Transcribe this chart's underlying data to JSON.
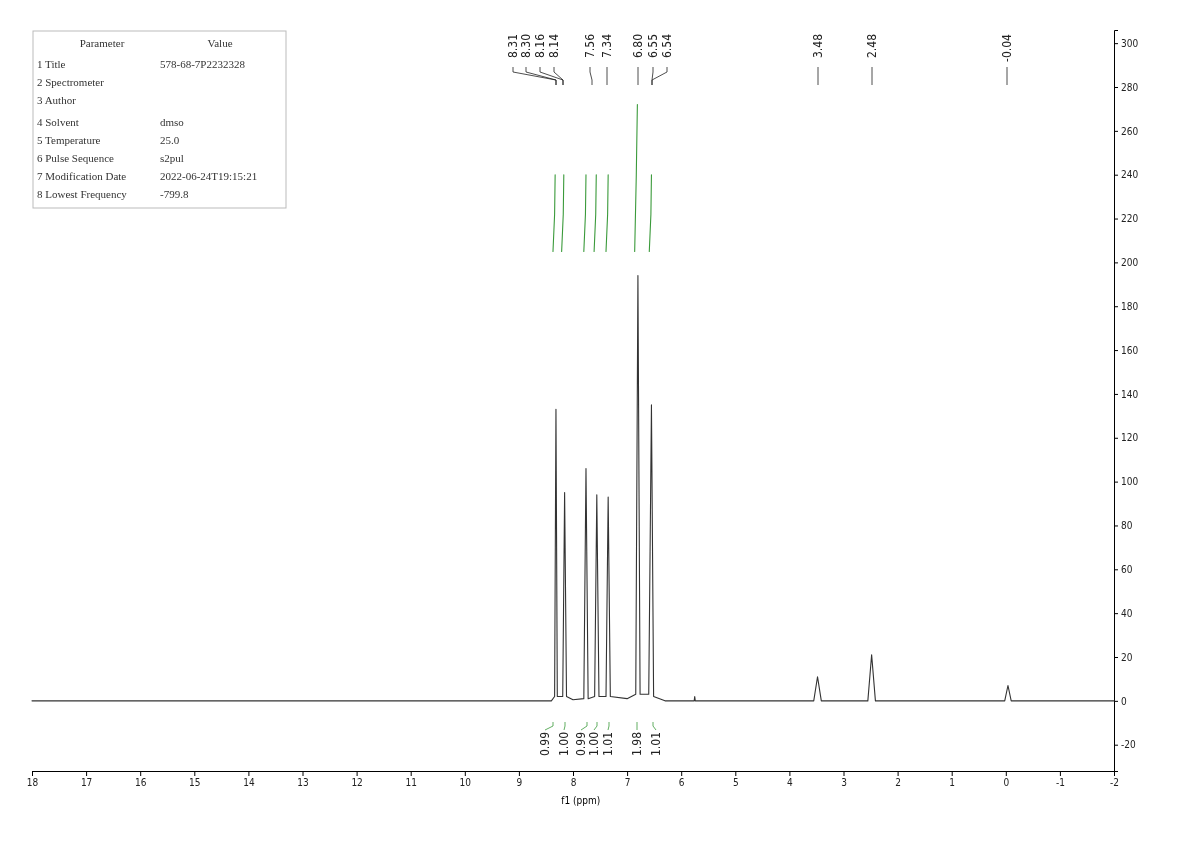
{
  "chart_data": {
    "type": "line",
    "xlabel": "f1 (ppm)",
    "xlim": [
      18,
      -2
    ],
    "xticks": [
      18,
      17,
      16,
      15,
      14,
      13,
      12,
      11,
      10,
      9,
      8,
      7,
      6,
      5,
      4,
      3,
      2,
      1,
      0,
      -1,
      -2
    ],
    "ylim": [
      -32,
      306
    ],
    "yticks": [
      -20,
      0,
      20,
      40,
      60,
      80,
      100,
      120,
      140,
      160,
      180,
      200,
      220,
      240,
      260,
      280,
      300
    ],
    "grid": false,
    "series": [
      {
        "color": "#333333",
        "x": [
          18,
          8.4,
          8.34,
          8.315,
          8.29,
          8.19,
          8.155,
          8.12,
          8.0,
          7.8,
          7.76,
          7.72,
          7.6,
          7.56,
          7.52,
          7.39,
          7.35,
          7.31,
          7.0,
          6.84,
          6.8,
          6.76,
          6.6,
          6.55,
          6.51,
          6.3,
          5.76,
          5.75,
          5.74,
          3.55,
          3.48,
          3.41,
          2.55,
          2.48,
          2.41,
          0.02,
          -0.04,
          -0.1,
          -2
        ],
        "values": [
          0,
          0,
          2,
          133,
          2,
          2,
          95,
          2,
          0.5,
          1,
          106,
          1,
          2,
          94,
          2,
          2,
          93,
          2,
          1,
          3,
          194,
          3,
          3,
          135,
          2,
          0,
          0,
          2,
          0,
          0,
          11,
          0,
          0,
          21,
          0,
          0,
          7,
          0,
          0
        ]
      },
      {
        "color": "#3a9a3a",
        "x": [
          8.37,
          8.34,
          8.33
        ],
        "values": [
          205,
          222,
          240
        ]
      },
      {
        "color": "#3a9a3a",
        "x": [
          8.21,
          8.18,
          8.17
        ],
        "values": [
          205,
          222,
          240
        ]
      },
      {
        "color": "#3a9a3a",
        "x": [
          7.8,
          7.77,
          7.76
        ],
        "values": [
          205,
          222,
          240
        ]
      },
      {
        "color": "#3a9a3a",
        "x": [
          7.61,
          7.58,
          7.57
        ],
        "values": [
          205,
          222,
          240
        ]
      },
      {
        "color": "#3a9a3a",
        "x": [
          7.39,
          7.36,
          7.35
        ],
        "values": [
          205,
          222,
          240
        ]
      },
      {
        "color": "#3a9a3a",
        "x": [
          6.86,
          6.83,
          6.81
        ],
        "values": [
          205,
          240,
          272
        ]
      },
      {
        "color": "#3a9a3a",
        "x": [
          6.59,
          6.56,
          6.55
        ],
        "values": [
          205,
          222,
          240
        ]
      }
    ],
    "annotations": [
      "Parameter\tValue",
      "1 Title\t578-68-7P2232328",
      "2 Spectrometer",
      "3 Author",
      "4 Solvent\tdmso",
      "5 Temperature\t25.0",
      "6 Pulse Sequence\ts2pul",
      "7 Modification Date\t2022-06-24T19:15:21",
      "8 Lowest Frequency\t-799.8",
      "8.31",
      "8.30",
      "8.16",
      "8.14",
      "7.56",
      "7.34",
      "6.80",
      "6.55",
      "6.54",
      "3.48",
      "2.48",
      "-0.04",
      "0.99",
      "1.00",
      "0.99",
      "1.00",
      "1.01",
      "1.98",
      "1.01"
    ]
  }
}
